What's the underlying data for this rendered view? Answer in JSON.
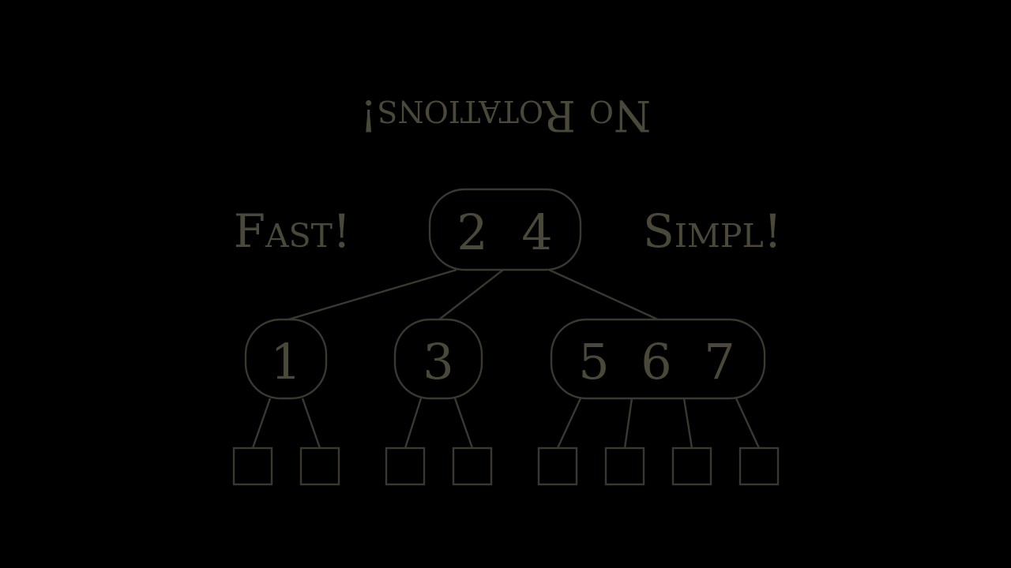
{
  "slide": {
    "title": "No Rotations!",
    "left_caption": "Fast!",
    "right_caption": "Simpl!",
    "colors": {
      "background": "#000000",
      "ink": "#3a382f",
      "text": "#4a4839"
    }
  },
  "tree": {
    "root": {
      "keys": [
        "2",
        "4"
      ]
    },
    "children": [
      {
        "keys": [
          "1"
        ],
        "leaf_count": 2
      },
      {
        "keys": [
          "3"
        ],
        "leaf_count": 2
      },
      {
        "keys": [
          "5",
          "6",
          "7"
        ],
        "leaf_count": 4
      }
    ]
  }
}
